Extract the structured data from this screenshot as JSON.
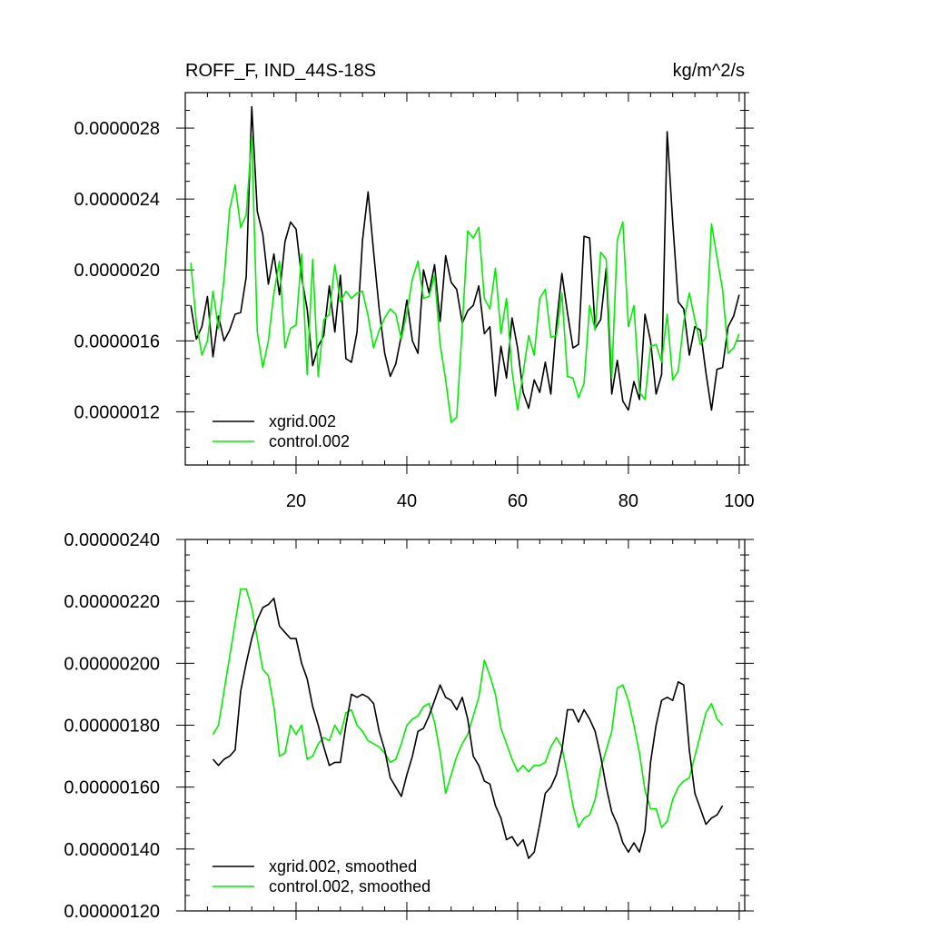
{
  "figure": {
    "title_left": "ROFF_F, IND_44S-18S",
    "title_right": "kg/m^2/s"
  },
  "colors": {
    "series_a": "#000000",
    "series_b": "#00ee00",
    "axis": "#000000"
  },
  "chart_data": [
    {
      "type": "line",
      "title": "ROFF_F, IND_44S-18S",
      "units": "kg/m^2/s",
      "xlim": [
        0,
        101
      ],
      "ylim": [
        9e-07,
        3e-06
      ],
      "x_ticks": [
        20,
        40,
        60,
        80,
        100
      ],
      "x_tick_labels": [
        "20",
        "40",
        "60",
        "80",
        "100"
      ],
      "y_ticks": [
        1.2e-06,
        1.6e-06,
        2e-06,
        2.4e-06,
        2.8e-06
      ],
      "y_tick_labels": [
        "0.0000012",
        "0.0000016",
        "0.0000020",
        "0.0000024",
        "0.0000028"
      ],
      "legend": [
        "xgrid.002",
        "control.002"
      ],
      "series": [
        {
          "name": "xgrid.002",
          "x_start": 1,
          "values": [
            1.8e-06,
            1.61e-06,
            1.68e-06,
            1.85e-06,
            1.51e-06,
            1.74e-06,
            1.6e-06,
            1.66e-06,
            1.75e-06,
            1.76e-06,
            1.96e-06,
            2.92e-06,
            2.33e-06,
            2.2e-06,
            1.92e-06,
            2.09e-06,
            1.86e-06,
            2.16e-06,
            2.27e-06,
            2.23e-06,
            1.96e-06,
            1.78e-06,
            1.46e-06,
            1.57e-06,
            1.63e-06,
            1.91e-06,
            1.65e-06,
            1.97e-06,
            1.5e-06,
            1.48e-06,
            1.65e-06,
            2.17e-06,
            2.44e-06,
            2.1e-06,
            1.78e-06,
            1.53e-06,
            1.4e-06,
            1.47e-06,
            1.63e-06,
            1.83e-06,
            1.6e-06,
            1.53e-06,
            2e-06,
            1.87e-06,
            2.03e-06,
            1.71e-06,
            2.08e-06,
            1.93e-06,
            1.89e-06,
            1.7e-06,
            1.77e-06,
            1.8e-06,
            1.91e-06,
            1.64e-06,
            1.68e-06,
            1.29e-06,
            1.57e-06,
            1.39e-06,
            1.73e-06,
            1.56e-06,
            1.31e-06,
            1.22e-06,
            1.38e-06,
            1.31e-06,
            1.48e-06,
            1.3e-06,
            1.69e-06,
            1.98e-06,
            1.76e-06,
            1.56e-06,
            1.58e-06,
            2.19e-06,
            2.18e-06,
            1.67e-06,
            1.72e-06,
            2.01e-06,
            1.3e-06,
            1.49e-06,
            1.26e-06,
            1.21e-06,
            1.37e-06,
            1.27e-06,
            1.75e-06,
            1.6e-06,
            1.3e-06,
            1.41e-06,
            2.78e-06,
            2.27e-06,
            1.82e-06,
            1.78e-06,
            1.52e-06,
            1.68e-06,
            1.66e-06,
            1.42e-06,
            1.21e-06,
            1.44e-06,
            1.45e-06,
            1.68e-06,
            1.74e-06,
            1.86e-06
          ]
        },
        {
          "name": "control.002",
          "x_start": 1,
          "values": [
            2.04e-06,
            1.7e-06,
            1.52e-06,
            1.6e-06,
            1.88e-06,
            1.67e-06,
            1.95e-06,
            2.34e-06,
            2.48e-06,
            2.24e-06,
            2.31e-06,
            2.75e-06,
            1.65e-06,
            1.45e-06,
            1.6e-06,
            1.87e-06,
            2.05e-06,
            1.56e-06,
            1.67e-06,
            1.69e-06,
            2.09e-06,
            1.41e-06,
            2.06e-06,
            1.4e-06,
            1.72e-06,
            1.75e-06,
            2.03e-06,
            1.82e-06,
            1.88e-06,
            1.84e-06,
            1.87e-06,
            1.88e-06,
            1.74e-06,
            1.56e-06,
            1.66e-06,
            1.73e-06,
            1.78e-06,
            1.75e-06,
            1.61e-06,
            1.76e-06,
            1.95e-06,
            2.05e-06,
            1.84e-06,
            1.85e-06,
            1.97e-06,
            1.58e-06,
            1.38e-06,
            1.14e-06,
            1.17e-06,
            1.68e-06,
            2.22e-06,
            2.18e-06,
            2.24e-06,
            1.84e-06,
            1.78e-06,
            2.01e-06,
            1.64e-06,
            1.84e-06,
            1.43e-06,
            1.21e-06,
            1.42e-06,
            1.63e-06,
            1.52e-06,
            1.84e-06,
            1.89e-06,
            1.62e-06,
            1.63e-06,
            1.87e-06,
            1.4e-06,
            1.39e-06,
            1.28e-06,
            1.36e-06,
            1.8e-06,
            1.66e-06,
            2.1e-06,
            2.06e-06,
            1.39e-06,
            2.17e-06,
            2.27e-06,
            1.68e-06,
            1.8e-06,
            1.31e-06,
            1.27e-06,
            1.57e-06,
            1.58e-06,
            1.48e-06,
            1.75e-06,
            1.38e-06,
            1.43e-06,
            1.71e-06,
            1.87e-06,
            1.72e-06,
            1.58e-06,
            1.62e-06,
            2.26e-06,
            2.07e-06,
            1.89e-06,
            1.53e-06,
            1.56e-06,
            1.64e-06
          ]
        }
      ]
    },
    {
      "type": "line",
      "xlim": [
        0,
        101
      ],
      "ylim": [
        1.2e-06,
        2.4e-06
      ],
      "x_ticks": [
        20,
        40,
        60,
        80,
        100
      ],
      "y_ticks": [
        1.2e-06,
        1.4e-06,
        1.6e-06,
        1.8e-06,
        2e-06,
        2.2e-06,
        2.4e-06
      ],
      "y_tick_labels": [
        "0.00000120",
        "0.00000140",
        "0.00000160",
        "0.00000180",
        "0.00000200",
        "0.00000220",
        "0.00000240"
      ],
      "legend": [
        "xgrid.002, smoothed",
        "control.002, smoothed"
      ],
      "series": [
        {
          "name": "xgrid.002, smoothed",
          "x_start": 5,
          "values": [
            1.69e-06,
            1.67e-06,
            1.69e-06,
            1.7e-06,
            1.72e-06,
            1.91e-06,
            2e-06,
            2.08e-06,
            2.14e-06,
            2.18e-06,
            2.19e-06,
            2.21e-06,
            2.12e-06,
            2.1e-06,
            2.08e-06,
            2.08e-06,
            2e-06,
            1.95e-06,
            1.86e-06,
            1.8e-06,
            1.73e-06,
            1.67e-06,
            1.68e-06,
            1.68e-06,
            1.8e-06,
            1.9e-06,
            1.89e-06,
            1.9e-06,
            1.89e-06,
            1.87e-06,
            1.78e-06,
            1.72e-06,
            1.63e-06,
            1.6e-06,
            1.57e-06,
            1.64e-06,
            1.7e-06,
            1.78e-06,
            1.79e-06,
            1.83e-06,
            1.88e-06,
            1.93e-06,
            1.89e-06,
            1.88e-06,
            1.85e-06,
            1.89e-06,
            1.82e-06,
            1.7e-06,
            1.67e-06,
            1.62e-06,
            1.61e-06,
            1.54e-06,
            1.5e-06,
            1.43e-06,
            1.44e-06,
            1.41e-06,
            1.43e-06,
            1.37e-06,
            1.39e-06,
            1.48e-06,
            1.58e-06,
            1.6e-06,
            1.64e-06,
            1.72e-06,
            1.85e-06,
            1.85e-06,
            1.81e-06,
            1.85e-06,
            1.82e-06,
            1.78e-06,
            1.7e-06,
            1.6e-06,
            1.52e-06,
            1.48e-06,
            1.42e-06,
            1.39e-06,
            1.42e-06,
            1.39e-06,
            1.46e-06,
            1.68e-06,
            1.8e-06,
            1.88e-06,
            1.89e-06,
            1.88e-06,
            1.94e-06,
            1.93e-06,
            1.72e-06,
            1.58e-06,
            1.53e-06,
            1.48e-06,
            1.5e-06,
            1.51e-06,
            1.54e-06
          ]
        },
        {
          "name": "control.002, smoothed",
          "x_start": 5,
          "values": [
            1.77e-06,
            1.8e-06,
            1.91e-06,
            2.02e-06,
            2.13e-06,
            2.24e-06,
            2.24e-06,
            2.18e-06,
            2.08e-06,
            1.98e-06,
            1.96e-06,
            1.86e-06,
            1.7e-06,
            1.71e-06,
            1.8e-06,
            1.77e-06,
            1.8e-06,
            1.69e-06,
            1.7e-06,
            1.74e-06,
            1.76e-06,
            1.75e-06,
            1.8e-06,
            1.77e-06,
            1.84e-06,
            1.85e-06,
            1.8e-06,
            1.78e-06,
            1.75e-06,
            1.74e-06,
            1.73e-06,
            1.71e-06,
            1.68e-06,
            1.69e-06,
            1.74e-06,
            1.8e-06,
            1.82e-06,
            1.83e-06,
            1.86e-06,
            1.87e-06,
            1.81e-06,
            1.71e-06,
            1.58e-06,
            1.64e-06,
            1.7e-06,
            1.74e-06,
            1.77e-06,
            1.83e-06,
            1.89e-06,
            2.01e-06,
            1.96e-06,
            1.9e-06,
            1.79e-06,
            1.74e-06,
            1.69e-06,
            1.65e-06,
            1.67e-06,
            1.65e-06,
            1.67e-06,
            1.67e-06,
            1.68e-06,
            1.73e-06,
            1.76e-06,
            1.73e-06,
            1.64e-06,
            1.54e-06,
            1.47e-06,
            1.5e-06,
            1.51e-06,
            1.56e-06,
            1.66e-06,
            1.72e-06,
            1.78e-06,
            1.92e-06,
            1.93e-06,
            1.88e-06,
            1.8e-06,
            1.71e-06,
            1.59e-06,
            1.53e-06,
            1.53e-06,
            1.47e-06,
            1.49e-06,
            1.56e-06,
            1.6e-06,
            1.62e-06,
            1.63e-06,
            1.7e-06,
            1.77e-06,
            1.84e-06,
            1.87e-06,
            1.82e-06,
            1.8e-06
          ]
        }
      ]
    }
  ]
}
